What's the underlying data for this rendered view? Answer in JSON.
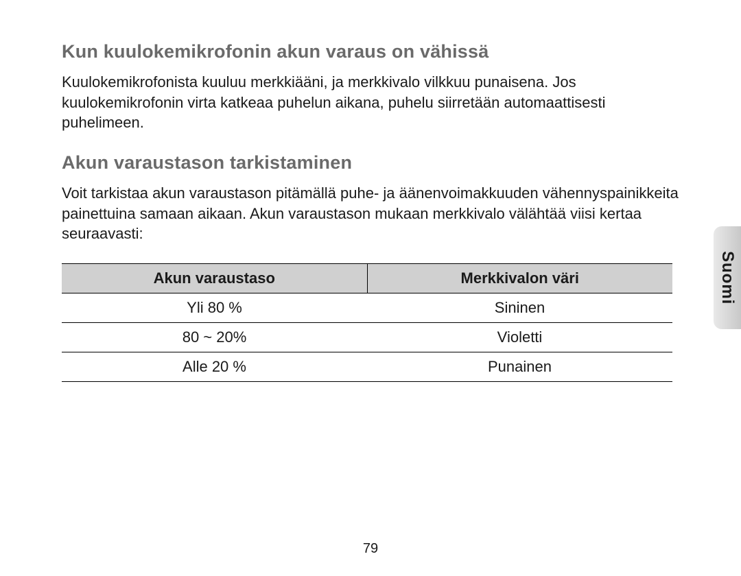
{
  "section1": {
    "heading": "Kun kuulokemikrofonin akun varaus on vähissä",
    "body": "Kuulokemikrofonista kuuluu merkkiääni, ja merkkivalo vilkkuu punaisena. Jos kuulokemikrofonin virta katkeaa puhelun aikana, puhelu siirretään automaattisesti puhelimeen."
  },
  "section2": {
    "heading": "Akun varaustason tarkistaminen",
    "body": "Voit tarkistaa akun varaustason pitämällä puhe- ja äänenvoimakkuuden vähennyspainikkeita painettuina samaan aikaan. Akun varaustason mukaan merkkivalo välähtää viisi kertaa seuraavasti:"
  },
  "table": {
    "headers": {
      "col1": "Akun varaustaso",
      "col2": "Merkkivalon väri"
    },
    "rows": [
      {
        "level": "Yli 80 %",
        "color": "Sininen"
      },
      {
        "level": "80 ~ 20%",
        "color": "Violetti"
      },
      {
        "level": "Alle 20 %",
        "color": "Punainen"
      }
    ]
  },
  "tab_label": "Suomi",
  "page_number": "79",
  "styling": {
    "heading_color": "#6a6a6a",
    "heading_fontsize": 27,
    "body_fontsize": 22,
    "tab_bg_from": "#e9e9e9",
    "tab_bg_to": "#c8c8c8",
    "th_bg": "#d0d0d0",
    "border_color": "#000000",
    "page_bg": "#ffffff"
  }
}
